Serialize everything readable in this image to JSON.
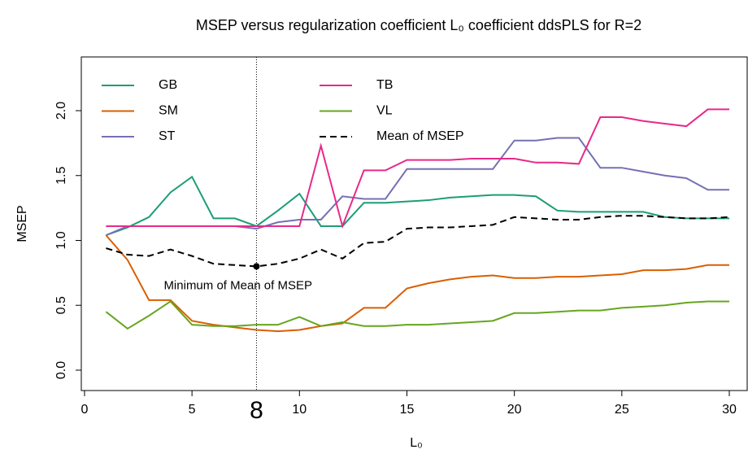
{
  "chart_data": {
    "type": "line",
    "title": "MSEP versus regularization coefficient L₀ coefficient ddsPLS for R=2",
    "xlabel": "L₀",
    "ylabel": "MSEP",
    "x": [
      1,
      2,
      3,
      4,
      5,
      6,
      7,
      8,
      9,
      10,
      11,
      12,
      13,
      14,
      15,
      16,
      17,
      18,
      19,
      20,
      21,
      22,
      23,
      24,
      25,
      26,
      27,
      28,
      29,
      30
    ],
    "series": [
      {
        "name": "GB",
        "color": "#1b9e77",
        "values": [
          1.04,
          1.1,
          1.18,
          1.37,
          1.49,
          1.17,
          1.17,
          1.11,
          1.23,
          1.36,
          1.11,
          1.11,
          1.29,
          1.29,
          1.3,
          1.31,
          1.33,
          1.34,
          1.35,
          1.35,
          1.34,
          1.23,
          1.22,
          1.22,
          1.22,
          1.22,
          1.18,
          1.17,
          1.17,
          1.17
        ]
      },
      {
        "name": "SM",
        "color": "#d95f02",
        "values": [
          1.04,
          0.85,
          0.54,
          0.54,
          0.38,
          0.35,
          0.33,
          0.31,
          0.3,
          0.31,
          0.34,
          0.36,
          0.48,
          0.48,
          0.63,
          0.67,
          0.7,
          0.72,
          0.73,
          0.71,
          0.71,
          0.72,
          0.72,
          0.73,
          0.74,
          0.77,
          0.77,
          0.78,
          0.81,
          0.81
        ]
      },
      {
        "name": "ST",
        "color": "#7570b3",
        "values": [
          1.04,
          1.11,
          1.11,
          1.11,
          1.11,
          1.11,
          1.11,
          1.09,
          1.14,
          1.16,
          1.16,
          1.34,
          1.32,
          1.32,
          1.55,
          1.55,
          1.55,
          1.55,
          1.55,
          1.77,
          1.77,
          1.79,
          1.79,
          1.56,
          1.56,
          1.53,
          1.5,
          1.48,
          1.39,
          1.39
        ]
      },
      {
        "name": "TB",
        "color": "#e7298a",
        "values": [
          1.11,
          1.11,
          1.11,
          1.11,
          1.11,
          1.11,
          1.11,
          1.11,
          1.11,
          1.11,
          1.73,
          1.11,
          1.54,
          1.54,
          1.62,
          1.62,
          1.62,
          1.63,
          1.63,
          1.63,
          1.6,
          1.6,
          1.59,
          1.95,
          1.95,
          1.92,
          1.9,
          1.88,
          2.01,
          2.01
        ]
      },
      {
        "name": "VL",
        "color": "#66a61e",
        "values": [
          0.45,
          0.32,
          0.42,
          0.53,
          0.35,
          0.34,
          0.34,
          0.35,
          0.35,
          0.41,
          0.34,
          0.37,
          0.34,
          0.34,
          0.35,
          0.35,
          0.36,
          0.37,
          0.38,
          0.44,
          0.44,
          0.45,
          0.46,
          0.46,
          0.48,
          0.49,
          0.5,
          0.52,
          0.53,
          0.53
        ]
      },
      {
        "name": "Mean of MSEP",
        "color": "#000000",
        "dashed": true,
        "values": [
          0.94,
          0.89,
          0.88,
          0.93,
          0.88,
          0.82,
          0.81,
          0.8,
          0.82,
          0.86,
          0.93,
          0.86,
          0.98,
          0.99,
          1.09,
          1.1,
          1.1,
          1.11,
          1.12,
          1.18,
          1.17,
          1.16,
          1.16,
          1.18,
          1.19,
          1.19,
          1.18,
          1.17,
          1.17,
          1.18
        ]
      }
    ],
    "xlim": [
      -0.15,
      30.87
    ],
    "ylim": [
      -0.157,
      2.414
    ],
    "xticks": [
      0,
      5,
      10,
      15,
      20,
      25,
      30
    ],
    "yticks": [
      {
        "value": 0,
        "label": "0.0"
      },
      {
        "value": 0.5,
        "label": "0.5"
      },
      {
        "value": 1,
        "label": "1.0"
      },
      {
        "value": 1.5,
        "label": "1.5"
      },
      {
        "value": 2,
        "label": "2.0"
      }
    ],
    "marker_x": 8,
    "annotation": {
      "text": "Minimum of Mean of MSEP",
      "x": 8,
      "y": 0.8
    },
    "legend": "top-left"
  }
}
